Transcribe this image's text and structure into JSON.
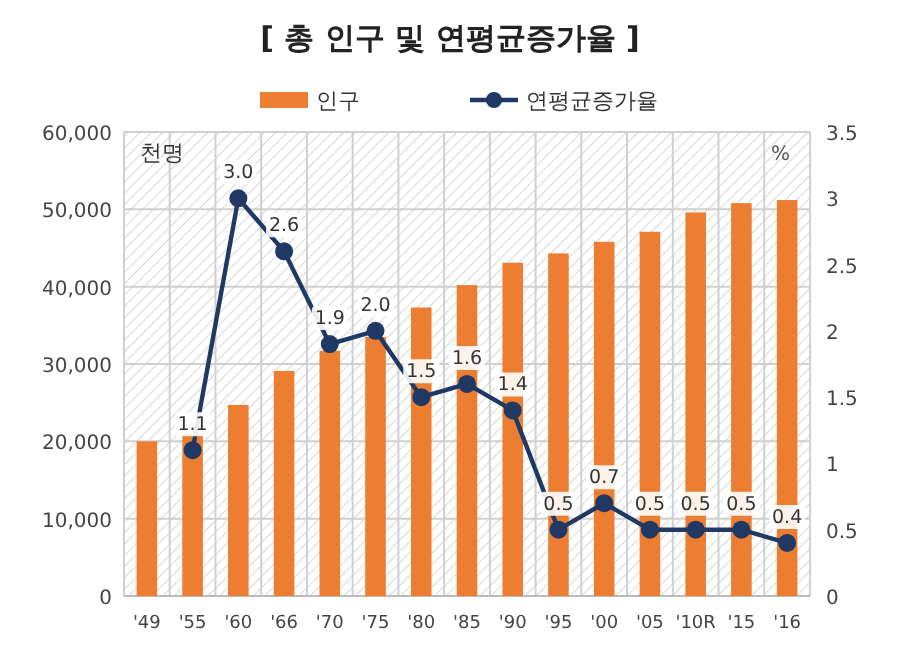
{
  "chart_data": {
    "type": "bar",
    "title": "[ 총 인구 및 연평균증가율 ]",
    "ylabel": "천명",
    "y2label": "%",
    "categories": [
      "'49",
      "'55",
      "'60",
      "'66",
      "'70",
      "'75",
      "'80",
      "'85",
      "'90",
      "'95",
      "'00",
      "'05",
      "'10R",
      "'15",
      "'16"
    ],
    "series": [
      {
        "name": "인구",
        "color": "#ed7d31",
        "values": [
          20000,
          21000,
          24700,
          29100,
          31700,
          33500,
          37300,
          40200,
          43100,
          44300,
          45800,
          47100,
          49600,
          50800,
          51200
        ]
      },
      {
        "name": "연평균증가율",
        "type": "line",
        "axis": "y2",
        "color": "#1f3864",
        "marker": "circle",
        "values": [
          null,
          1.1,
          3.0,
          2.6,
          1.9,
          2.0,
          1.5,
          1.6,
          1.4,
          0.5,
          0.7,
          0.5,
          0.5,
          0.5,
          0.4
        ],
        "value_labels": [
          null,
          "1.1",
          "3.0",
          "2.6",
          "1.9",
          "2.0",
          "1.5",
          "1.6",
          "1.4",
          "0.5",
          "0.7",
          "0.5",
          "0.5",
          "0.5",
          "0.4"
        ]
      }
    ],
    "ylim": [
      0,
      60000
    ],
    "yticks": [
      {
        "value": 0,
        "label": "0"
      },
      {
        "value": 10000,
        "label": "10,000"
      },
      {
        "value": 20000,
        "label": "20,000"
      },
      {
        "value": 30000,
        "label": "30,000"
      },
      {
        "value": 40000,
        "label": "40,000"
      },
      {
        "value": 50000,
        "label": "50,000"
      },
      {
        "value": 60000,
        "label": "60,000"
      }
    ],
    "y2lim": [
      0,
      3.5
    ],
    "y2ticks": [
      0,
      0.5,
      1,
      1.5,
      2,
      2.5,
      3,
      3.5
    ],
    "grid": true,
    "legend": "top"
  }
}
